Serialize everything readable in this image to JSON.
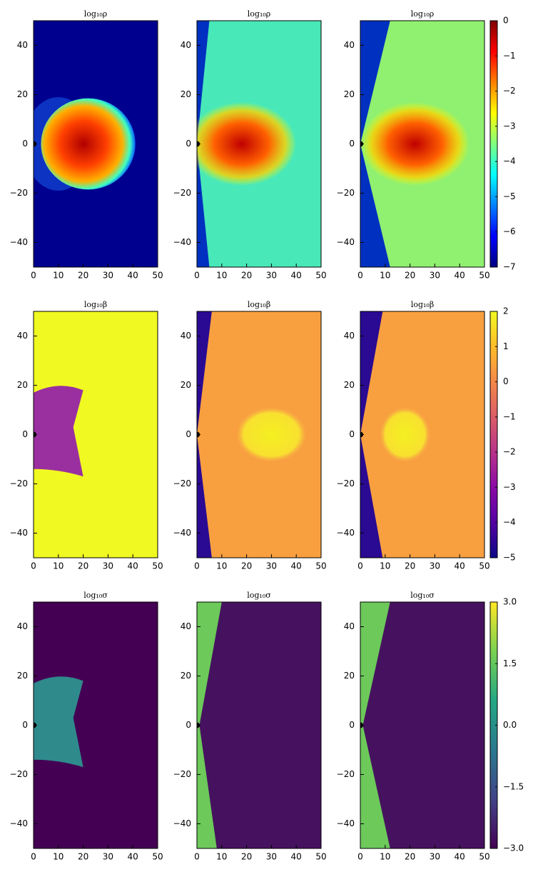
{
  "chart_data": [
    {
      "type": "heatmap",
      "title": "log₁₀ρ",
      "xlim": [
        0,
        50
      ],
      "ylim": [
        -50,
        50
      ],
      "xticks": [
        0,
        10,
        20,
        30,
        40,
        50
      ],
      "yticks": [
        {
          "value": -40,
          "label": "−40"
        },
        {
          "value": -20,
          "label": "−20"
        },
        0,
        20,
        40
      ]
    },
    {
      "type": "heatmap",
      "title": "log₁₀ρ",
      "xlim": [
        0,
        50
      ],
      "ylim": [
        -50,
        50
      ],
      "xticks": [
        0,
        10,
        20,
        30,
        40,
        50
      ],
      "yticks": [
        {
          "value": -40,
          "label": "−40"
        },
        {
          "value": -20,
          "label": "−20"
        },
        0,
        20,
        40
      ]
    },
    {
      "type": "heatmap",
      "title": "log₁₀ρ",
      "xlim": [
        0,
        50
      ],
      "ylim": [
        -50,
        50
      ],
      "xticks": [
        0,
        10,
        20,
        30,
        40,
        50
      ],
      "yticks": [
        {
          "value": -40,
          "label": "−40"
        },
        {
          "value": -20,
          "label": "−20"
        },
        0,
        20,
        40
      ]
    },
    {
      "type": "heatmap",
      "title": "log₁₀β",
      "xlim": [
        0,
        50
      ],
      "ylim": [
        -50,
        50
      ],
      "xticks": [
        0,
        10,
        20,
        30,
        40,
        50
      ],
      "yticks": [
        {
          "value": -40,
          "label": "−40"
        },
        {
          "value": -20,
          "label": "−20"
        },
        0,
        20,
        40
      ]
    },
    {
      "type": "heatmap",
      "title": "log₁₀β",
      "xlim": [
        0,
        50
      ],
      "ylim": [
        -50,
        50
      ],
      "xticks": [
        0,
        10,
        20,
        30,
        40,
        50
      ],
      "yticks": [
        {
          "value": -40,
          "label": "−40"
        },
        {
          "value": -20,
          "label": "−20"
        },
        0,
        20,
        40
      ]
    },
    {
      "type": "heatmap",
      "title": "log₁₀β",
      "xlim": [
        0,
        50
      ],
      "ylim": [
        -50,
        50
      ],
      "xticks": [
        0,
        10,
        20,
        30,
        40,
        50
      ],
      "yticks": [
        {
          "value": -40,
          "label": "−40"
        },
        {
          "value": -20,
          "label": "−20"
        },
        0,
        20,
        40
      ]
    },
    {
      "type": "heatmap",
      "title": "log₁₀σ",
      "xlim": [
        0,
        50
      ],
      "ylim": [
        -50,
        50
      ],
      "xticks": [
        0,
        10,
        20,
        30,
        40,
        50
      ],
      "yticks": [
        {
          "value": -40,
          "label": "−40"
        },
        {
          "value": -20,
          "label": "−20"
        },
        0,
        20,
        40
      ]
    },
    {
      "type": "heatmap",
      "title": "log₁₀σ",
      "xlim": [
        0,
        50
      ],
      "ylim": [
        -50,
        50
      ],
      "xticks": [
        0,
        10,
        20,
        30,
        40,
        50
      ],
      "yticks": [
        {
          "value": -40,
          "label": "−40"
        },
        {
          "value": -20,
          "label": "−20"
        },
        0,
        20,
        40
      ]
    },
    {
      "type": "heatmap",
      "title": "log₁₀σ",
      "xlim": [
        0,
        50
      ],
      "ylim": [
        -50,
        50
      ],
      "xticks": [
        0,
        10,
        20,
        30,
        40,
        50
      ],
      "yticks": [
        {
          "value": -40,
          "label": "−40"
        },
        {
          "value": -20,
          "label": "−20"
        },
        0,
        20,
        40
      ]
    },
    {
      "type": "colorbar",
      "colormap": "jet",
      "ylim": [
        -7,
        0
      ],
      "yticks": [
        0,
        {
          "value": -1,
          "label": "−1"
        },
        {
          "value": -2,
          "label": "−2"
        },
        {
          "value": -3,
          "label": "−3"
        },
        {
          "value": -4,
          "label": "−4"
        },
        {
          "value": -5,
          "label": "−5"
        },
        {
          "value": -6,
          "label": "−6"
        },
        {
          "value": -7,
          "label": "−7"
        }
      ]
    },
    {
      "type": "colorbar",
      "colormap": "plasma",
      "ylim": [
        -5,
        2
      ],
      "yticks": [
        2,
        1,
        0,
        {
          "value": -1,
          "label": "−1"
        },
        {
          "value": -2,
          "label": "−2"
        },
        {
          "value": -3,
          "label": "−3"
        },
        {
          "value": -4,
          "label": "−4"
        },
        {
          "value": -5,
          "label": "−5"
        }
      ]
    },
    {
      "type": "colorbar",
      "colormap": "viridis",
      "ylim": [
        -3,
        3
      ],
      "yticks": [
        {
          "value": 3,
          "label": "3.0"
        },
        {
          "value": 1.5,
          "label": "1.5"
        },
        {
          "value": 0,
          "label": "0.0"
        },
        {
          "value": -1.5,
          "label": "−1.5"
        },
        {
          "value": -3,
          "label": "−3.0"
        }
      ]
    }
  ]
}
